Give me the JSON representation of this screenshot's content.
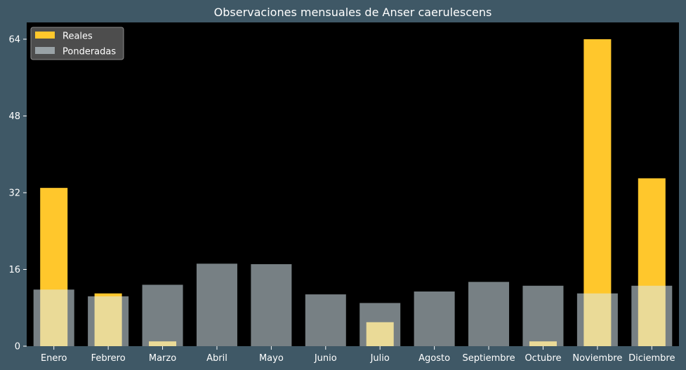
{
  "colors": {
    "background": "#3f5866",
    "plot_area": "#000000",
    "real": "#ffc72c",
    "weighted": "#d9eaf0",
    "text": "#ffffff"
  },
  "chart_data": {
    "type": "bar",
    "title": "Observaciones mensuales de Anser caerulescens",
    "xlabel": "",
    "ylabel": "",
    "categories": [
      "Enero",
      "Febrero",
      "Marzo",
      "Abril",
      "Mayo",
      "Junio",
      "Julio",
      "Agosto",
      "Septiembre",
      "Octubre",
      "Noviembre",
      "Diciembre"
    ],
    "series": [
      {
        "name": "Reales",
        "values": [
          33,
          11,
          1,
          0,
          0,
          0,
          5,
          0,
          0,
          1,
          64,
          35
        ]
      },
      {
        "name": "Ponderadas",
        "values": [
          11.8,
          10.4,
          12.8,
          17.2,
          17.1,
          10.8,
          9.0,
          11.4,
          13.4,
          12.6,
          11.0,
          12.6
        ]
      }
    ],
    "ylim": [
      0,
      67.5
    ],
    "yticks": [
      0,
      16,
      32,
      48,
      64
    ],
    "legend": "top-left",
    "grid": false
  }
}
